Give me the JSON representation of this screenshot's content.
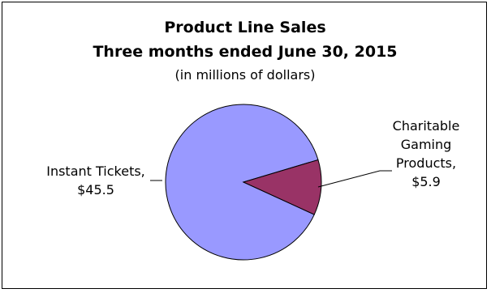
{
  "chart_data": {
    "type": "pie",
    "title": "Product Line Sales",
    "title_line2": "Three months ended June 30, 2015",
    "subtitle": "(in millions of dollars)",
    "slices": [
      {
        "name": "Instant Tickets",
        "value": 45.5,
        "label_lines": [
          "Instant Tickets,",
          "$45.5"
        ],
        "color": "#9999FF"
      },
      {
        "name": "Charitable Gaming Products",
        "value": 5.9,
        "label_lines": [
          "Charitable",
          "Gaming",
          "Products,",
          "$5.9"
        ],
        "color": "#993366"
      }
    ],
    "legend": "none",
    "grid": false
  }
}
